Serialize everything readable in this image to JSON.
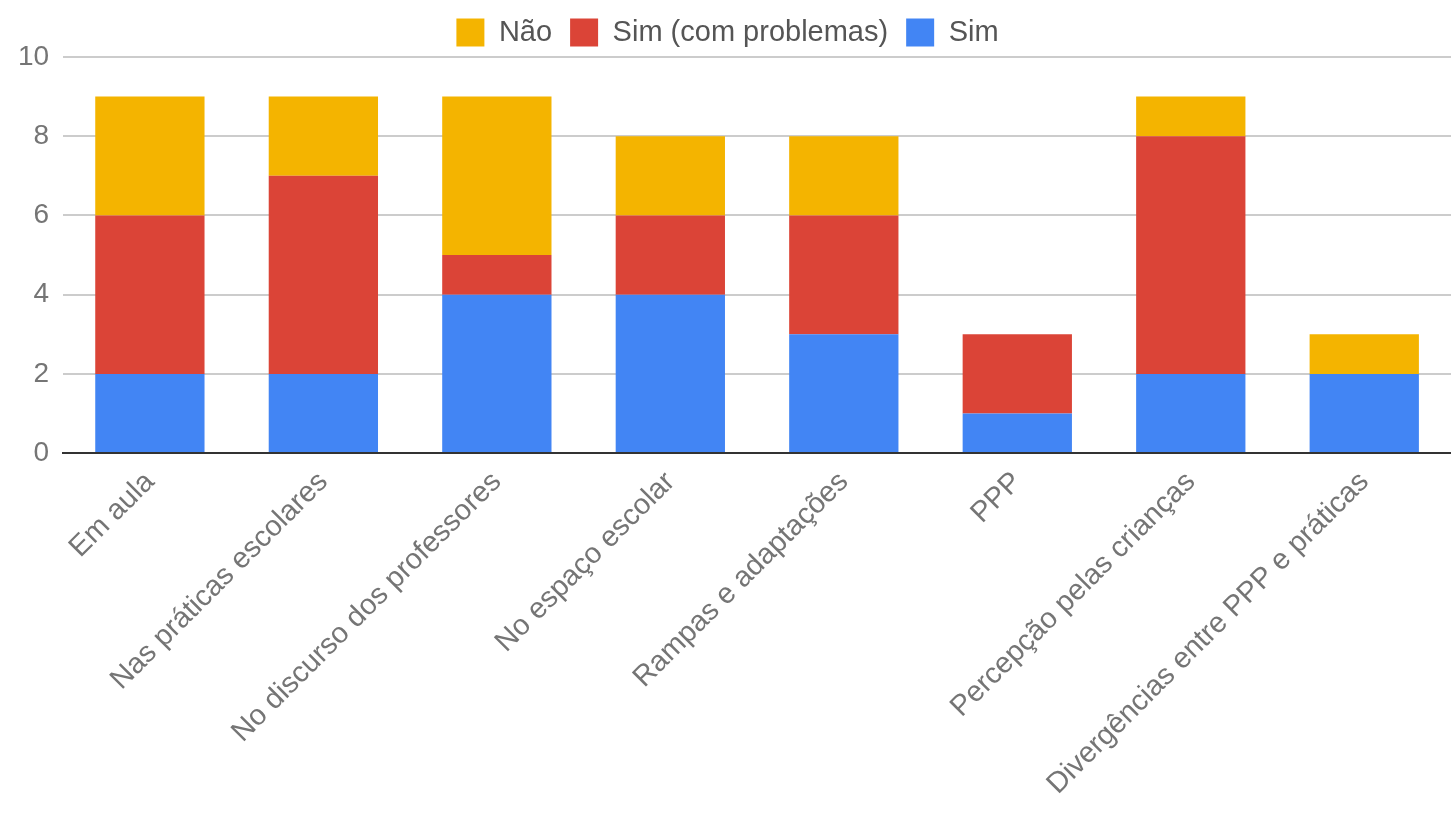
{
  "chart_data": {
    "type": "bar",
    "stacked": true,
    "categories": [
      "Em aula",
      "Nas práticas escolares",
      "No discurso dos professores",
      "No espaço escolar",
      "Rampas e adaptações",
      "PPP",
      "Percepção pelas crianças",
      "Divergências entre PPP e práticas"
    ],
    "series": [
      {
        "name": "Sim",
        "color": "#4285f4",
        "values": [
          2,
          2,
          4,
          4,
          3,
          1,
          2,
          2
        ]
      },
      {
        "name": "Sim (com problemas)",
        "color": "#db4437",
        "values": [
          4,
          5,
          1,
          2,
          3,
          2,
          6,
          0
        ]
      },
      {
        "name": "Não",
        "color": "#f4b400",
        "values": [
          3,
          2,
          4,
          2,
          2,
          0,
          1,
          1
        ]
      }
    ],
    "ylim": [
      0,
      10
    ],
    "yticks": [
      0,
      2,
      4,
      6,
      8,
      10
    ],
    "grid": "y",
    "legend": "top"
  }
}
